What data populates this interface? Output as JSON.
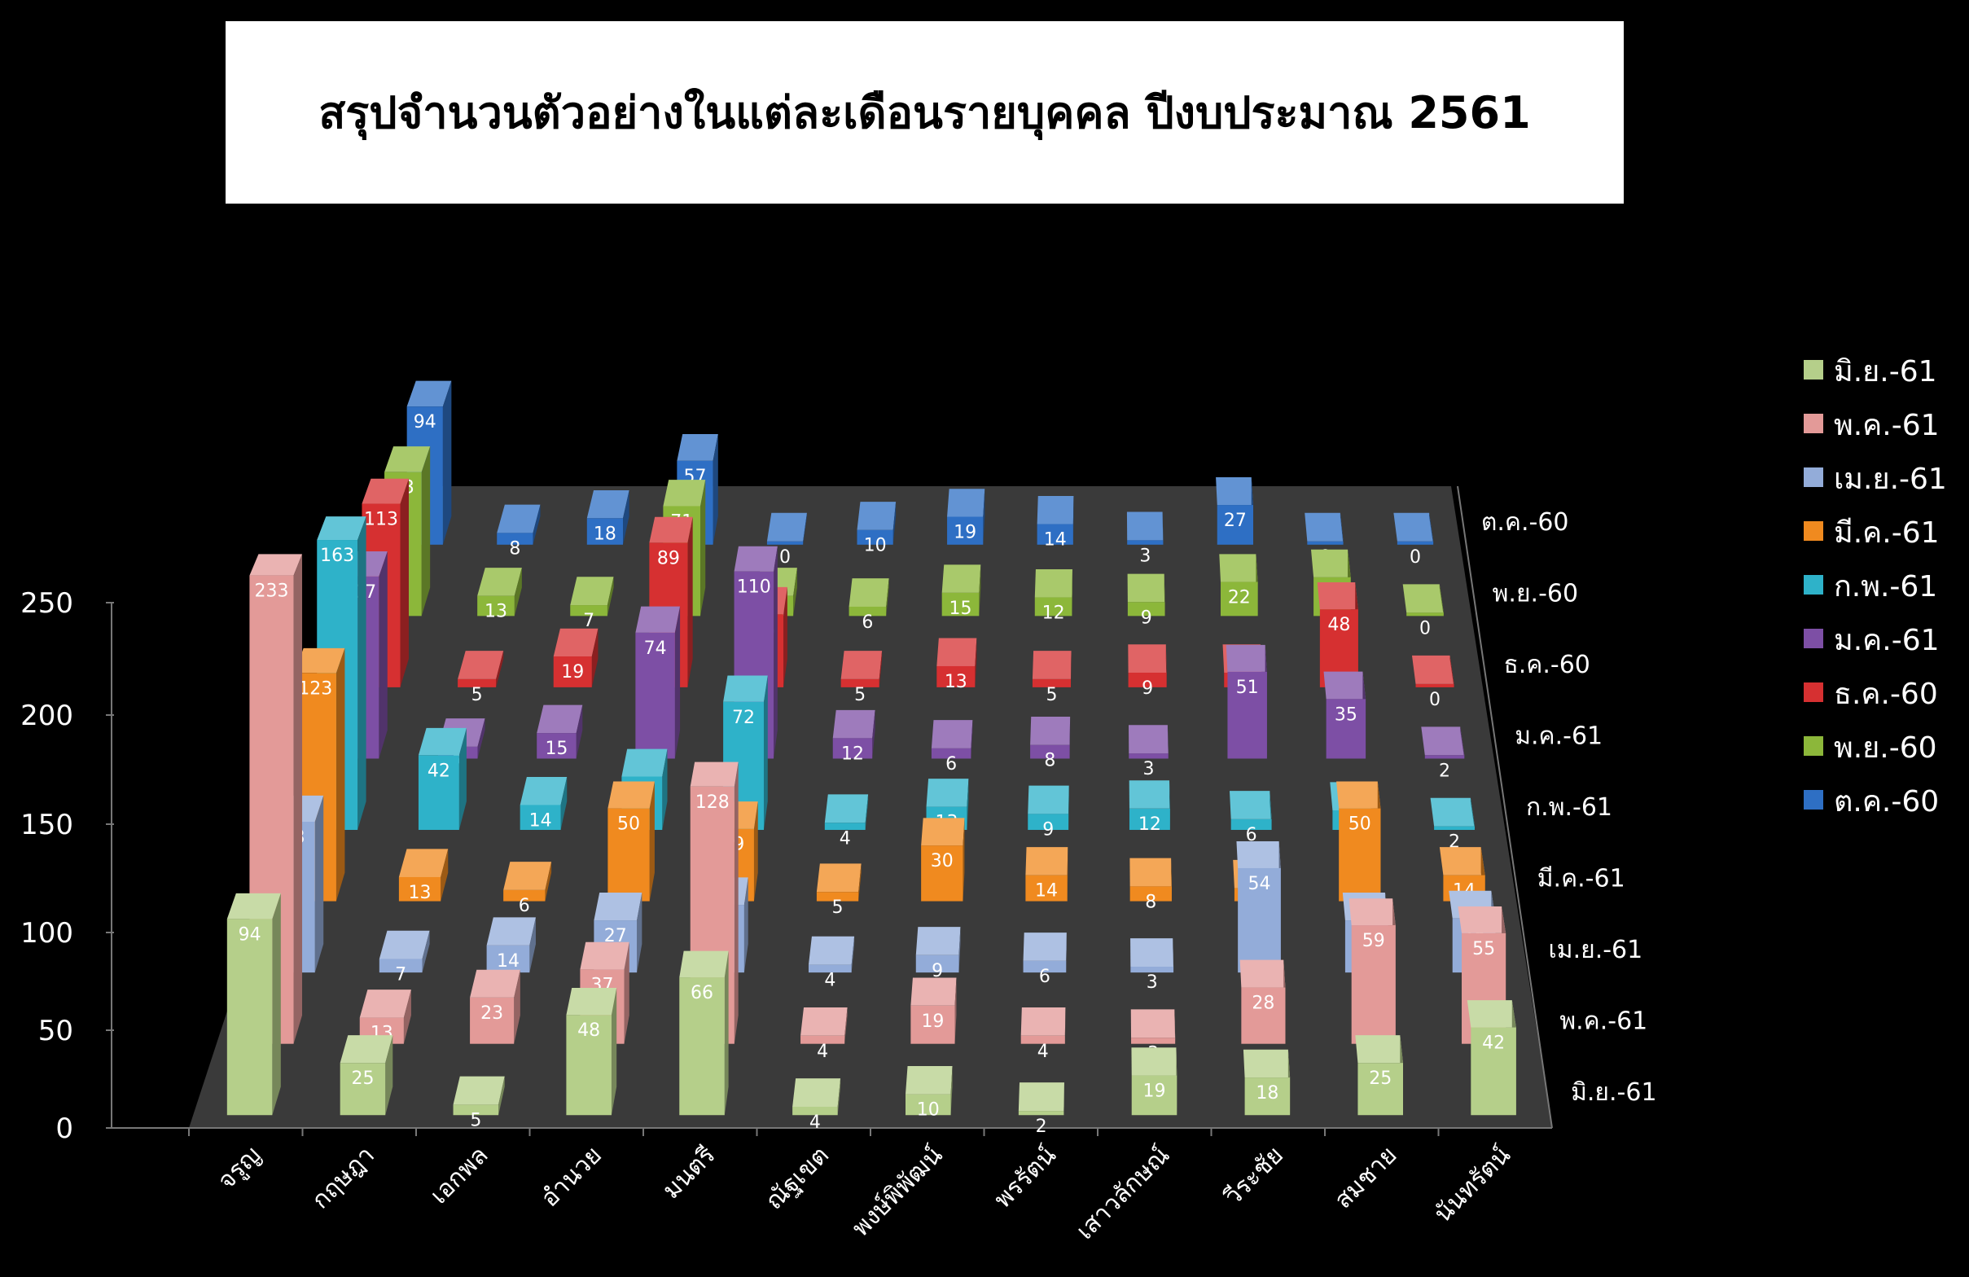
{
  "chart_data": {
    "type": "bar",
    "subtype": "3d-column",
    "title": "สรุปจำนวนตัวอย่างในแต่ละเดือนรายบุคคล ปีงบประมาณ 2561",
    "categories": [
      "จรูญ",
      "กฤษฎา",
      "เอกพล",
      "อำนวย",
      "มนตรี",
      "ณัฐเขต",
      "พงษ์พิพัฒน์",
      "พรรัตน์",
      "เสาวลักษณ์",
      "วีระชัย",
      "สมชาย",
      "นันทรัตน์"
    ],
    "ylim": [
      0,
      250
    ],
    "yticks": [
      "0",
      "50",
      "100",
      "150",
      "200",
      "250"
    ],
    "legend_position": "right",
    "series": [
      {
        "name": "มิ.ย.-61",
        "color": "#b5cf8a",
        "values": [
          94,
          25,
          5,
          48,
          66,
          4,
          10,
          2,
          19,
          18,
          25,
          42
        ]
      },
      {
        "name": "พ.ค.-61",
        "color": "#e39a98",
        "values": [
          233,
          13,
          23,
          37,
          128,
          4,
          19,
          4,
          3,
          28,
          59,
          55
        ]
      },
      {
        "name": "เม.ย.-61",
        "color": "#93acd9",
        "values": [
          78,
          7,
          14,
          27,
          35,
          4,
          9,
          6,
          3,
          54,
          27,
          28
        ]
      },
      {
        "name": "มี.ค.-61",
        "color": "#f08a1f",
        "values": [
          123,
          13,
          6,
          50,
          39,
          5,
          30,
          14,
          8,
          7,
          50,
          14
        ]
      },
      {
        "name": "ก.พ.-61",
        "color": "#2eb2c9",
        "values": [
          163,
          42,
          14,
          30,
          72,
          4,
          13,
          9,
          12,
          6,
          11,
          2
        ]
      },
      {
        "name": "ม.ค.-61",
        "color": "#7d4fa5",
        "values": [
          107,
          7,
          15,
          74,
          110,
          12,
          6,
          8,
          3,
          51,
          35,
          2
        ]
      },
      {
        "name": "ธ.ค.-60",
        "color": "#d63031",
        "values": [
          113,
          5,
          19,
          89,
          45,
          5,
          13,
          5,
          9,
          9,
          48,
          0
        ]
      },
      {
        "name": "พ.ย.-60",
        "color": "#8cb73a",
        "values": [
          93,
          13,
          7,
          71,
          13,
          6,
          15,
          12,
          9,
          22,
          25,
          0
        ]
      },
      {
        "name": "ต.ค.-60",
        "color": "#2e6fc4",
        "values": [
          94,
          8,
          18,
          57,
          0,
          10,
          19,
          14,
          3,
          27,
          0,
          0
        ]
      }
    ]
  }
}
